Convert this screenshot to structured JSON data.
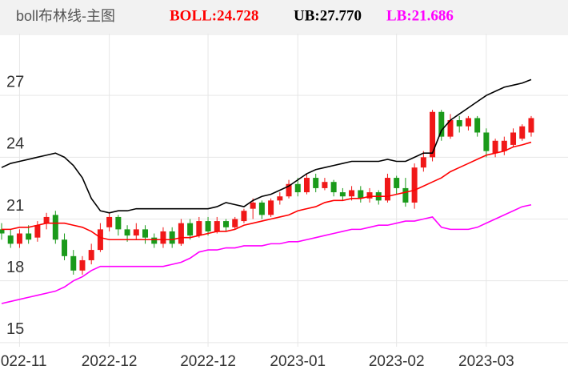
{
  "chart_data": {
    "type": "candlestick",
    "title": "boll布林线-主图",
    "indicators": [
      {
        "label": "BOLL:24.728",
        "color": "#ff0000"
      },
      {
        "label": "UB:27.770",
        "color": "#000000"
      },
      {
        "label": "LB:21.686",
        "color": "#ff00ff"
      }
    ],
    "categories": [
      null,
      null,
      "2022-11",
      null,
      null,
      null,
      null,
      null,
      null,
      null,
      null,
      null,
      "2022-12",
      null,
      null,
      null,
      null,
      null,
      null,
      null,
      null,
      null,
      null,
      "2022-12",
      null,
      null,
      null,
      null,
      null,
      null,
      null,
      null,
      null,
      "2023-01",
      null,
      null,
      null,
      null,
      null,
      null,
      null,
      null,
      null,
      null,
      "2023-02",
      null,
      null,
      null,
      null,
      null,
      null,
      null,
      null,
      null,
      "2023-03",
      null,
      null,
      null,
      null,
      null
    ],
    "open": [
      20.5,
      20.2,
      19.8,
      20.3,
      20.1,
      20.8,
      21.2,
      20.0,
      19.2,
      18.5,
      19.0,
      19.5,
      20.6,
      21.1,
      20.5,
      20.2,
      20.5,
      20.1,
      19.8,
      20.4,
      19.8,
      20.8,
      20.2,
      20.9,
      20.4,
      20.9,
      20.6,
      20.9,
      21.5,
      21.8,
      21.2,
      21.9,
      22.1,
      22.7,
      22.3,
      23.0,
      22.5,
      22.8,
      22.3,
      22.1,
      22.4,
      22.0,
      22.3,
      21.9,
      23.0,
      22.5,
      21.8,
      23.5,
      24.0,
      26.2,
      25.0,
      25.8,
      25.5,
      25.9,
      25.2,
      24.2,
      24.3,
      24.6,
      24.9,
      25.2
    ],
    "close": [
      20.3,
      19.8,
      20.3,
      20.0,
      20.7,
      21.1,
      20.0,
      19.2,
      18.5,
      19.0,
      19.5,
      20.5,
      21.1,
      20.5,
      20.2,
      20.5,
      20.1,
      19.8,
      20.4,
      19.8,
      20.8,
      20.2,
      20.9,
      20.4,
      20.9,
      20.6,
      21.0,
      21.4,
      21.8,
      21.2,
      21.9,
      22.1,
      22.7,
      22.3,
      23.0,
      22.5,
      22.8,
      22.3,
      22.1,
      22.4,
      22.0,
      22.3,
      21.9,
      23.0,
      22.5,
      21.8,
      23.5,
      24.0,
      26.2,
      25.0,
      25.8,
      25.5,
      25.9,
      25.2,
      24.3,
      24.8,
      24.8,
      25.2,
      25.5,
      25.9
    ],
    "high": [
      20.8,
      20.5,
      20.5,
      20.7,
      20.9,
      21.3,
      21.4,
      20.3,
      19.5,
      19.2,
      19.8,
      20.8,
      21.3,
      21.2,
      20.7,
      20.8,
      20.7,
      20.3,
      20.6,
      20.6,
      21.0,
      21.0,
      21.1,
      21.1,
      21.1,
      21.0,
      21.1,
      21.5,
      22.0,
      21.9,
      22.0,
      22.3,
      22.9,
      23.0,
      23.2,
      23.2,
      23.0,
      22.9,
      22.5,
      22.6,
      22.6,
      22.5,
      22.4,
      23.2,
      23.1,
      23.0,
      23.7,
      24.3,
      26.3,
      26.3,
      26.1,
      26.0,
      26.0,
      26.0,
      25.4,
      24.9,
      25.0,
      25.4,
      25.6,
      26.0
    ],
    "low": [
      20.0,
      19.6,
      19.6,
      19.8,
      19.9,
      20.5,
      19.8,
      19.0,
      18.3,
      18.3,
      18.8,
      19.4,
      20.4,
      20.2,
      19.9,
      20.0,
      19.8,
      19.6,
      19.6,
      19.6,
      19.7,
      20.0,
      20.1,
      20.2,
      20.3,
      20.4,
      20.5,
      20.8,
      21.0,
      21.0,
      21.1,
      21.7,
      22.0,
      22.1,
      22.2,
      22.3,
      22.4,
      22.1,
      21.9,
      21.9,
      21.8,
      21.8,
      21.7,
      21.8,
      22.2,
      21.6,
      21.5,
      23.3,
      23.8,
      24.8,
      24.9,
      25.2,
      25.3,
      25.0,
      24.0,
      24.0,
      24.1,
      24.5,
      24.8,
      25.0
    ],
    "up_color": "#f01818",
    "down_color": "#1a9a1a",
    "series": [
      {
        "name": "UB",
        "color": "#000000",
        "values": [
          23.5,
          23.7,
          23.8,
          23.9,
          24.0,
          24.1,
          24.2,
          24.0,
          23.6,
          23.0,
          22.0,
          21.4,
          21.3,
          21.4,
          21.4,
          21.5,
          21.5,
          21.5,
          21.5,
          21.5,
          21.5,
          21.5,
          21.5,
          21.5,
          21.6,
          21.8,
          21.7,
          21.6,
          21.9,
          22.1,
          22.2,
          22.4,
          22.6,
          22.9,
          23.2,
          23.4,
          23.5,
          23.6,
          23.7,
          23.8,
          23.8,
          23.8,
          23.8,
          23.9,
          23.8,
          23.8,
          24.0,
          24.2,
          24.2,
          25.3,
          25.8,
          26.1,
          26.4,
          26.7,
          27.0,
          27.2,
          27.4,
          27.5,
          27.6,
          27.77
        ]
      },
      {
        "name": "BOLL",
        "color": "#ff0000",
        "values": [
          20.5,
          20.5,
          20.6,
          20.6,
          20.7,
          20.8,
          20.8,
          20.8,
          20.7,
          20.6,
          20.4,
          20.1,
          20.0,
          20.0,
          20.0,
          20.0,
          20.0,
          20.0,
          20.0,
          20.0,
          20.1,
          20.1,
          20.2,
          20.3,
          20.4,
          20.4,
          20.5,
          20.7,
          20.8,
          20.9,
          21.0,
          21.1,
          21.2,
          21.4,
          21.5,
          21.6,
          21.8,
          21.9,
          21.9,
          22.0,
          22.0,
          22.1,
          22.1,
          22.1,
          22.2,
          22.3,
          22.4,
          22.6,
          22.8,
          23.0,
          23.3,
          23.5,
          23.7,
          23.9,
          24.1,
          24.2,
          24.3,
          24.5,
          24.6,
          24.73
        ]
      },
      {
        "name": "LB",
        "color": "#ff00ff",
        "values": [
          16.9,
          17.0,
          17.1,
          17.2,
          17.3,
          17.4,
          17.5,
          17.7,
          18.0,
          18.2,
          18.5,
          18.7,
          18.7,
          18.7,
          18.7,
          18.7,
          18.7,
          18.7,
          18.7,
          18.8,
          18.9,
          19.1,
          19.4,
          19.5,
          19.5,
          19.6,
          19.6,
          19.7,
          19.7,
          19.7,
          19.8,
          19.8,
          19.9,
          19.9,
          20.0,
          20.1,
          20.2,
          20.3,
          20.4,
          20.5,
          20.5,
          20.6,
          20.7,
          20.7,
          20.8,
          20.9,
          20.9,
          21.0,
          21.1,
          20.6,
          20.5,
          20.5,
          20.5,
          20.6,
          20.8,
          21.0,
          21.2,
          21.4,
          21.6,
          21.69
        ]
      }
    ],
    "ylim": [
      14.8,
      30.0
    ],
    "yticks": [
      27,
      24,
      21,
      18,
      15
    ],
    "grid": true
  }
}
